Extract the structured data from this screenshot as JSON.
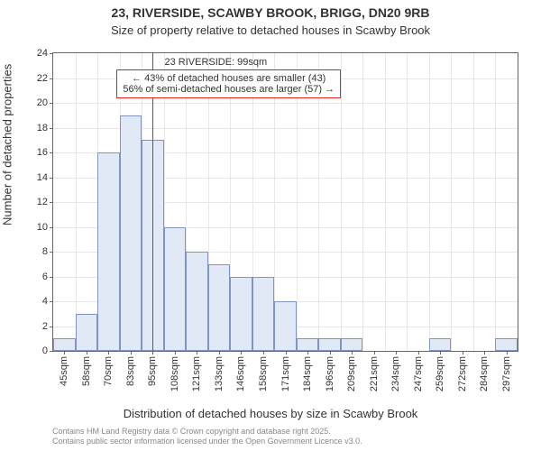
{
  "title_line1": "23, RIVERSIDE, SCAWBY BROOK, BRIGG, DN20 9RB",
  "title_line2": "Size of property relative to detached houses in Scawby Brook",
  "title_fontsize1": 14,
  "title_fontsize2": 13,
  "ylabel": "Number of detached properties",
  "xlabel": "Distribution of detached houses by size in Scawby Brook",
  "attribution_line1": "Contains HM Land Registry data © Crown copyright and database right 2025.",
  "attribution_line2": "Contains public sector information licensed under the Open Government Licence v3.0.",
  "chart": {
    "type": "histogram",
    "plot_bg": "#ffffff",
    "grid_color": "#e6e6e7",
    "border_color": "#666666",
    "bar_fill": "#e1e8f6",
    "bar_border": "#7f93c4",
    "marker_color": "#e32219",
    "ymin": 0,
    "ymax": 24,
    "ytick_step": 2,
    "categories": [
      "45sqm",
      "58sqm",
      "70sqm",
      "83sqm",
      "95sqm",
      "108sqm",
      "121sqm",
      "133sqm",
      "146sqm",
      "158sqm",
      "171sqm",
      "184sqm",
      "196sqm",
      "209sqm",
      "221sqm",
      "234sqm",
      "247sqm",
      "259sqm",
      "272sqm",
      "284sqm",
      "297sqm"
    ],
    "values": [
      1,
      3,
      16,
      19,
      17,
      10,
      8,
      7,
      6,
      6,
      4,
      1,
      1,
      1,
      0,
      0,
      0,
      1,
      0,
      0,
      1
    ],
    "marker_category_index": 4,
    "marker_title": "23 RIVERSIDE: 99sqm",
    "annotation_line1": "← 43% of detached houses are smaller (43)",
    "annotation_line2": "56% of semi-detached houses are larger (57) →",
    "label_fontsize": 11
  }
}
